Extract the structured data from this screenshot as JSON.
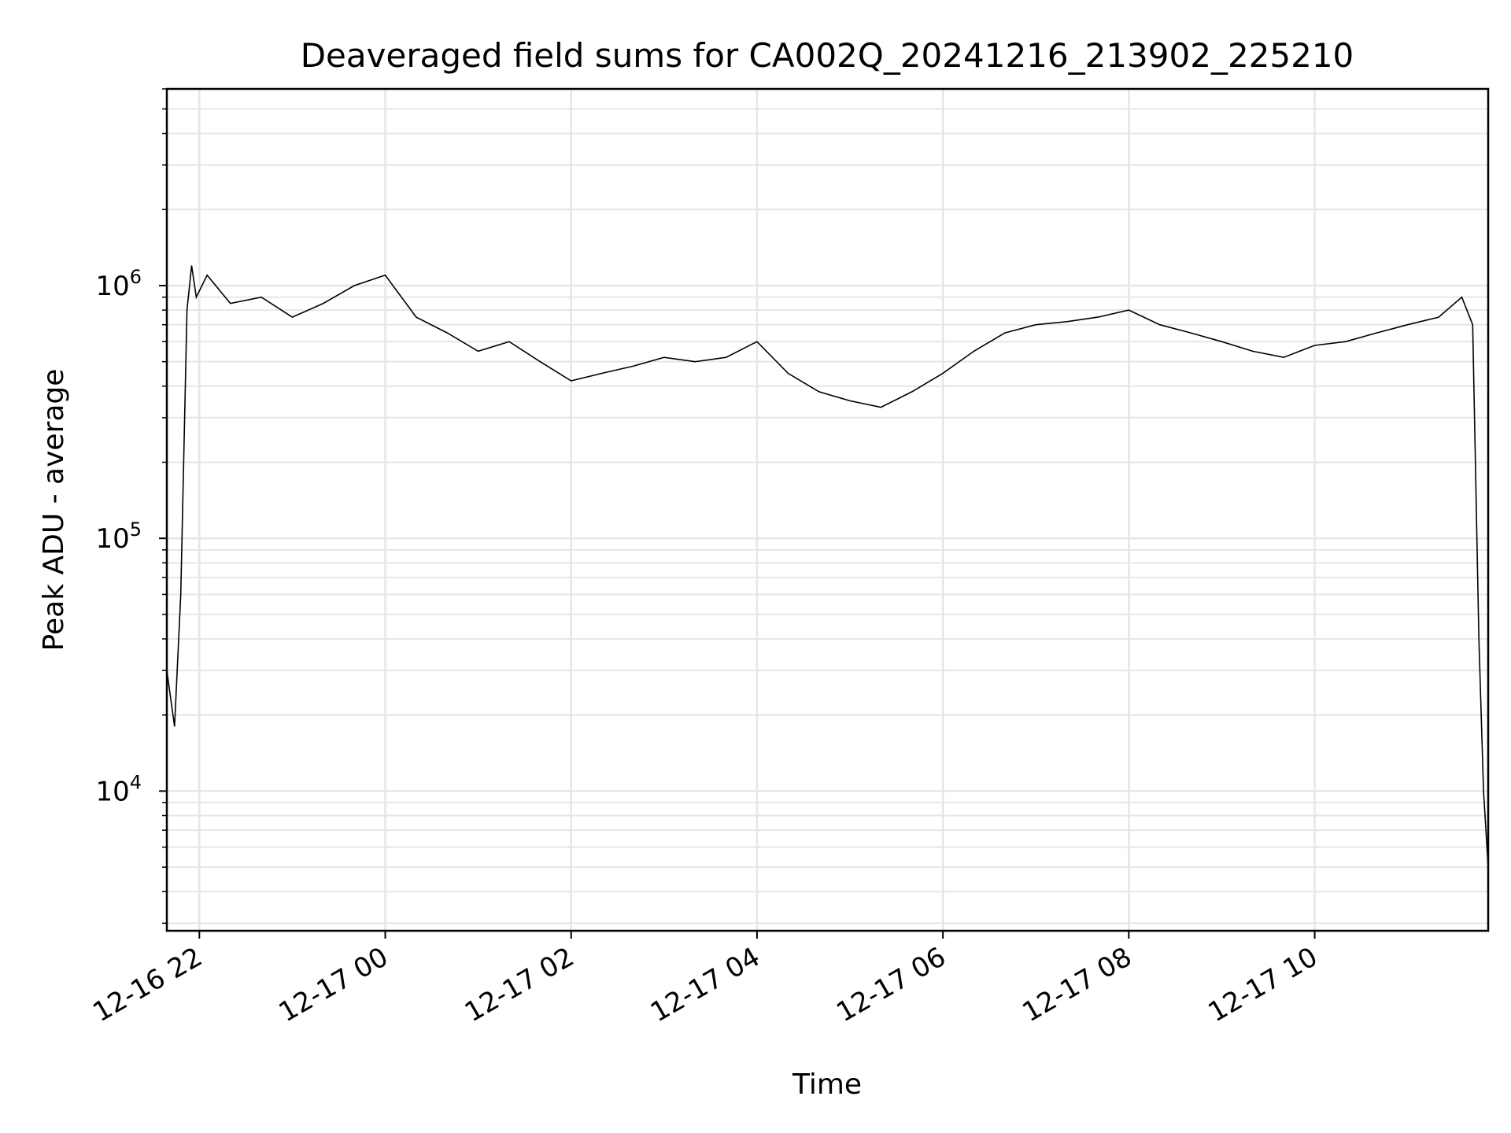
{
  "chart_data": {
    "type": "line",
    "title": "Deaveraged field sums for CA002Q_20241216_213902_225210",
    "xlabel": "Time",
    "ylabel": "Peak ADU - average",
    "y_scale": "log",
    "ylim": [
      2800,
      6000000
    ],
    "xlim": [
      "2024-12-16 21:39",
      "2024-12-17 11:52"
    ],
    "x_ticks": [
      {
        "value": "2024-12-16 22:00",
        "label": "12-16 22"
      },
      {
        "value": "2024-12-17 00:00",
        "label": "12-17 00"
      },
      {
        "value": "2024-12-17 02:00",
        "label": "12-17 02"
      },
      {
        "value": "2024-12-17 04:00",
        "label": "12-17 04"
      },
      {
        "value": "2024-12-17 06:00",
        "label": "12-17 06"
      },
      {
        "value": "2024-12-17 08:00",
        "label": "12-17 08"
      },
      {
        "value": "2024-12-17 10:00",
        "label": "12-17 10"
      }
    ],
    "y_ticks": [
      {
        "value": 10000,
        "base": "10",
        "exp": "4"
      },
      {
        "value": 100000,
        "base": "10",
        "exp": "5"
      },
      {
        "value": 1000000,
        "base": "10",
        "exp": "6"
      }
    ],
    "grid": true,
    "legend": "none",
    "colors": {
      "line": "#000000",
      "grid": "#e6e6e6",
      "axes": "#000000"
    },
    "series": [
      {
        "x": [
          "2024-12-16 21:39",
          "2024-12-16 21:44",
          "2024-12-16 21:48",
          "2024-12-16 21:52",
          "2024-12-16 21:55",
          "2024-12-16 21:58",
          "2024-12-16 22:05",
          "2024-12-16 22:20",
          "2024-12-16 22:40",
          "2024-12-16 23:00",
          "2024-12-16 23:20",
          "2024-12-16 23:40",
          "2024-12-17 00:00",
          "2024-12-17 00:20",
          "2024-12-17 00:40",
          "2024-12-17 01:00",
          "2024-12-17 01:20",
          "2024-12-17 01:40",
          "2024-12-17 02:00",
          "2024-12-17 02:20",
          "2024-12-17 02:40",
          "2024-12-17 03:00",
          "2024-12-17 03:20",
          "2024-12-17 03:40",
          "2024-12-17 04:00",
          "2024-12-17 04:20",
          "2024-12-17 04:40",
          "2024-12-17 05:00",
          "2024-12-17 05:20",
          "2024-12-17 05:40",
          "2024-12-17 06:00",
          "2024-12-17 06:20",
          "2024-12-17 06:40",
          "2024-12-17 07:00",
          "2024-12-17 07:20",
          "2024-12-17 07:40",
          "2024-12-17 08:00",
          "2024-12-17 08:20",
          "2024-12-17 08:40",
          "2024-12-17 09:00",
          "2024-12-17 09:20",
          "2024-12-17 09:40",
          "2024-12-17 10:00",
          "2024-12-17 10:20",
          "2024-12-17 10:40",
          "2024-12-17 11:00",
          "2024-12-17 11:20",
          "2024-12-17 11:35",
          "2024-12-17 11:42",
          "2024-12-17 11:46",
          "2024-12-17 11:49",
          "2024-12-17 11:52"
        ],
        "y": [
          30000,
          18000,
          60000,
          800000,
          1200000,
          900000,
          1100000,
          850000,
          900000,
          750000,
          850000,
          1000000,
          1100000,
          750000,
          650000,
          550000,
          600000,
          500000,
          420000,
          450000,
          480000,
          520000,
          500000,
          520000,
          600000,
          450000,
          380000,
          350000,
          330000,
          380000,
          450000,
          550000,
          650000,
          700000,
          720000,
          750000,
          800000,
          700000,
          650000,
          600000,
          550000,
          520000,
          580000,
          600000,
          650000,
          700000,
          750000,
          900000,
          700000,
          40000,
          10000,
          5000
        ]
      }
    ]
  }
}
